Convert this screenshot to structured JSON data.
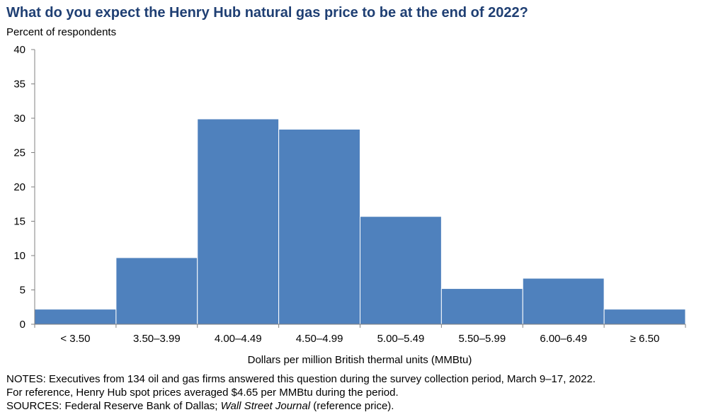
{
  "chart_data": {
    "type": "bar",
    "title": "What do you expect the Henry Hub natural gas price to be at the end of 2022?",
    "ylabel": "Percent of respondents",
    "xlabel": "Dollars  per  million  British  thermal  units  (MMBtu)",
    "categories": [
      "< 3.50",
      "3.50–3.99",
      "4.00–4.49",
      "4.50–4.99",
      "5.00–5.49",
      "5.50–5.99",
      "6.00–6.49",
      "≥ 6.50"
    ],
    "values": [
      2.2,
      9.7,
      29.9,
      28.4,
      15.7,
      5.2,
      6.7,
      2.2
    ],
    "ylim": [
      0,
      40
    ],
    "yticks": [
      "0",
      "5",
      "10",
      "15",
      "20",
      "25",
      "30",
      "35",
      "40"
    ],
    "bar_color": "#4f81bd",
    "grid": false,
    "legend": "none"
  },
  "notes": {
    "line1": "NOTES:  Executives  from 134 oil and gas firms answered  this question  during the survey collection  period,  March 9–17, 2022.",
    "line2": "For reference,  Henry Hub spot prices averaged  $4.65 per MMBtu  during the period.",
    "sources_prefix": "SOURCES:  Federal Reserve  Bank  of Dallas;  ",
    "sources_italic": "Wall Street Journal",
    "sources_suffix": " (reference price)."
  }
}
